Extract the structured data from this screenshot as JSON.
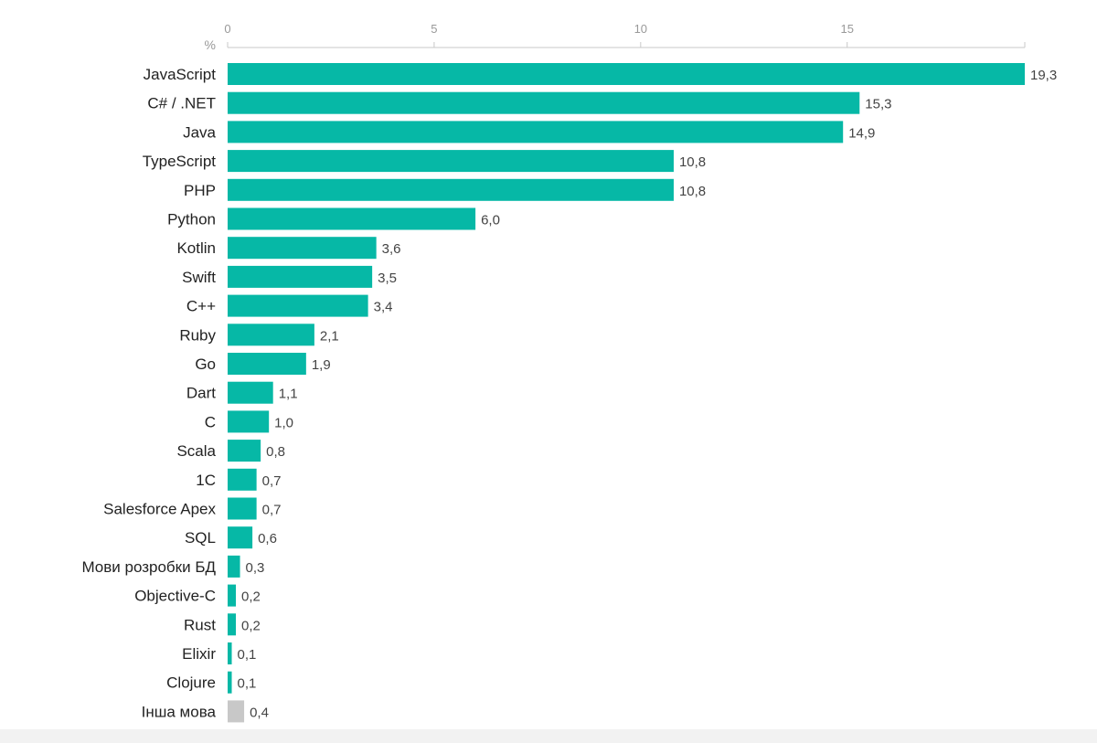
{
  "chart_data": {
    "type": "bar",
    "orientation": "horizontal",
    "unit_label": "%",
    "title": "",
    "xlabel": "",
    "ylabel": "",
    "xlim": [
      0,
      19.3
    ],
    "x_ticks": [
      0,
      5,
      10,
      15
    ],
    "x_tick_labels": [
      "0",
      "5",
      "10",
      "15"
    ],
    "grid": false,
    "legend": "none",
    "categories": [
      "JavaScript",
      "C# / .NET",
      "Java",
      "TypeScript",
      "PHP",
      "Python",
      "Kotlin",
      "Swift",
      "C++",
      "Ruby",
      "Go",
      "Dart",
      "C",
      "Scala",
      "1C",
      "Salesforce Apex",
      "SQL",
      "Мови розробки БД",
      "Objective-C",
      "Rust",
      "Elixir",
      "Clojure",
      "Інша мова"
    ],
    "values": [
      19.3,
      15.3,
      14.9,
      10.8,
      10.8,
      6.0,
      3.6,
      3.5,
      3.4,
      2.1,
      1.9,
      1.1,
      1.0,
      0.8,
      0.7,
      0.7,
      0.6,
      0.3,
      0.2,
      0.2,
      0.1,
      0.1,
      0.4
    ],
    "value_labels": [
      "19,3",
      "15,3",
      "14,9",
      "10,8",
      "10,8",
      "6,0",
      "3,6",
      "3,5",
      "3,4",
      "2,1",
      "1,9",
      "1,1",
      "1,0",
      "0,8",
      "0,7",
      "0,7",
      "0,6",
      "0,3",
      "0,2",
      "0,2",
      "0,1",
      "0,1",
      "0,4"
    ],
    "colors": {
      "primary": "#06b8a6",
      "other": "#c8c8c8",
      "axis": "#c8c8c8",
      "tick_text": "#999999",
      "label_text": "#222222",
      "value_text": "#444444"
    },
    "other_category": "Інша мова"
  }
}
